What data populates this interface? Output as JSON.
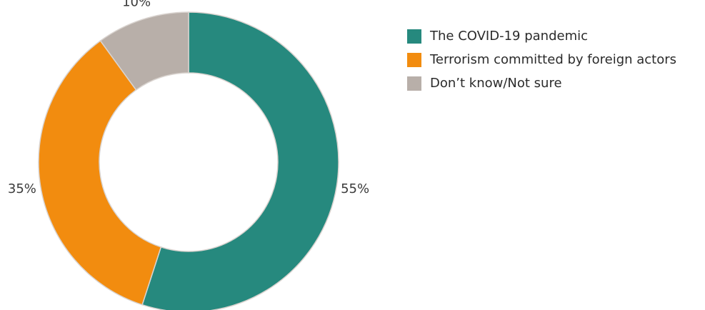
{
  "chart_data": {
    "type": "pie",
    "donut": true,
    "slices": [
      {
        "label": "The COVID-19 pandemic",
        "value": 55,
        "value_label": "55%",
        "color": "#26897e"
      },
      {
        "label": "Terrorism committed by foreign actors",
        "value": 35,
        "value_label": "35%",
        "color": "#f28c0f"
      },
      {
        "label": "Don’t know/Not sure",
        "value": 10,
        "value_label": "10%",
        "color": "#b8afa9"
      }
    ],
    "legend_position": "top-right"
  }
}
